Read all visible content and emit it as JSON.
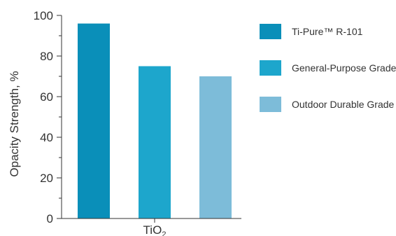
{
  "chart_data": {
    "type": "bar",
    "ylabel": "Opacity Strength, %",
    "ylim": [
      0,
      100
    ],
    "yticks": [
      "0",
      "20",
      "40",
      "60",
      "80",
      "100"
    ],
    "category_label": {
      "base": "TiO",
      "sub": "2"
    },
    "grid": false,
    "legend_position": "right",
    "series": [
      {
        "name": "Ti-Pure™ R-101",
        "value": 96,
        "color": "#0a8fb9"
      },
      {
        "name": "General-Purpose Grade",
        "value": 75,
        "color": "#1da6cc"
      },
      {
        "name": "Outdoor Durable Grade",
        "value": 70,
        "color": "#7dbcd9"
      }
    ]
  }
}
